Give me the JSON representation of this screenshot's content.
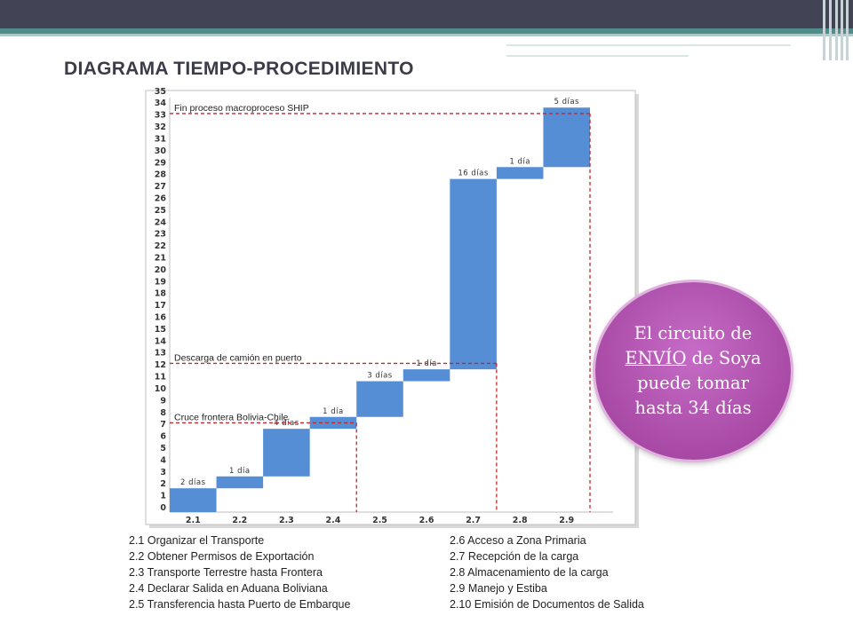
{
  "slide": {
    "title": "DIAGRAMA TIEMPO-PROCEDIMIENTO"
  },
  "chart_data": {
    "type": "bar",
    "subtype": "waterfall",
    "categories": [
      "2.1",
      "2.2",
      "2.3",
      "2.4",
      "2.5",
      "2.6",
      "2.7",
      "2.8",
      "2.9"
    ],
    "steps": [
      {
        "category": "2.1",
        "start": 0,
        "end": 2,
        "label": "2 días"
      },
      {
        "category": "2.2",
        "start": 2,
        "end": 3,
        "label": "1 día"
      },
      {
        "category": "2.3",
        "start": 3,
        "end": 7,
        "label": "4 días"
      },
      {
        "category": "2.4",
        "start": 7,
        "end": 8,
        "label": "1 día"
      },
      {
        "category": "2.5",
        "start": 8,
        "end": 11,
        "label": "3 días"
      },
      {
        "category": "2.6",
        "start": 11,
        "end": 12,
        "label": "1 día"
      },
      {
        "category": "2.7",
        "start": 12,
        "end": 28,
        "label": "16 días"
      },
      {
        "category": "2.8",
        "start": 28,
        "end": 29,
        "label": "1 día"
      },
      {
        "category": "2.9",
        "start": 29,
        "end": 34,
        "label": "5 días"
      }
    ],
    "ylim": [
      0,
      35
    ],
    "yticks": [
      0,
      1,
      2,
      3,
      4,
      5,
      6,
      7,
      8,
      9,
      10,
      11,
      12,
      13,
      14,
      15,
      16,
      17,
      18,
      19,
      20,
      21,
      22,
      23,
      24,
      25,
      26,
      27,
      28,
      29,
      30,
      31,
      32,
      33,
      34,
      35
    ],
    "bar_color": "#558ed5",
    "milestones": [
      {
        "label": "Cruce frontera Bolivia-Chile",
        "y": 7.5,
        "x_end": "2.4"
      },
      {
        "label": "Descarga de camión en puerto",
        "y": 12.5,
        "x_end": "2.7"
      },
      {
        "label": "Fin proceso macroproceso SHIP",
        "y": 33.5,
        "x_end": "2.9"
      }
    ],
    "milestone_color": "#c0282d"
  },
  "legend": {
    "left": [
      "2.1  Organizar el Transporte",
      "2.2  Obtener Permisos de Exportación",
      "2.3   Transporte Terrestre hasta Frontera",
      "2.4   Declarar Salida en Aduana Boliviana",
      "2.5   Transferencia hasta Puerto de Embarque"
    ],
    "right": [
      "2.6   Acceso a Zona Primaria",
      "2.7   Recepción de la carga",
      "2.8   Almacenamiento de la carga",
      "2.9   Manejo y Estiba",
      "2.10 Emisión de Documentos de Salida"
    ]
  },
  "callout": {
    "line1": "El circuito de",
    "underlined": "ENVÍO",
    "line2_rest": " de Soya",
    "line3": "puede tomar",
    "line4": "hasta 34 días"
  }
}
